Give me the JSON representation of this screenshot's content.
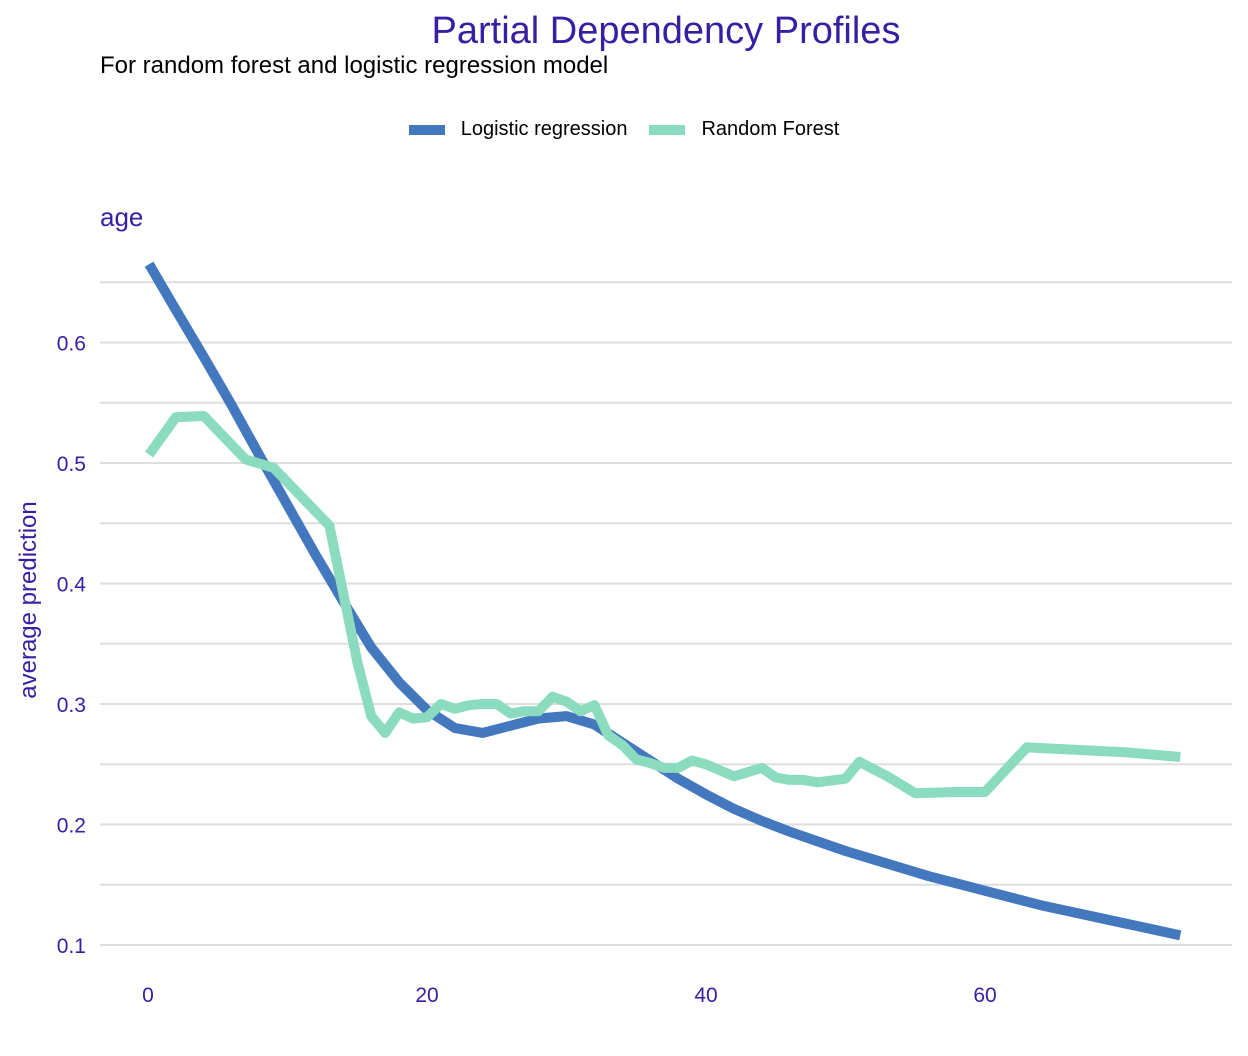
{
  "title": "Partial Dependency Profiles",
  "subtitle": "For random forest and logistic regression model",
  "chart_data": {
    "type": "line",
    "title": "Partial Dependency Profiles",
    "subtitle": "For random forest and logistic regression model",
    "panel": "age",
    "xlabel": "",
    "ylabel": "average prediction",
    "xlim": [
      -4,
      78
    ],
    "ylim": [
      0.1,
      0.66
    ],
    "xticks": [
      0,
      20,
      40,
      60
    ],
    "yticks": [
      0.1,
      0.2,
      0.3,
      0.4,
      0.5,
      0.6
    ],
    "grid": "horizontal",
    "legend_position": "top",
    "series": [
      {
        "name": "Logistic regression",
        "color": "#4378bf",
        "x": [
          0.08,
          2,
          4,
          6,
          8,
          10,
          12,
          14,
          16,
          18,
          20,
          22,
          24,
          26,
          28,
          30,
          32,
          34,
          36,
          38,
          40,
          42,
          44,
          46,
          48,
          50,
          52,
          54,
          56,
          58,
          60,
          62,
          64,
          66,
          68,
          70,
          72,
          74
        ],
        "y": [
          0.665,
          0.627,
          0.588,
          0.548,
          0.506,
          0.465,
          0.424,
          0.385,
          0.347,
          0.318,
          0.295,
          0.28,
          0.276,
          0.282,
          0.288,
          0.29,
          0.283,
          0.268,
          0.253,
          0.238,
          0.225,
          0.213,
          0.203,
          0.194,
          0.186,
          0.178,
          0.171,
          0.164,
          0.157,
          0.151,
          0.145,
          0.139,
          0.133,
          0.128,
          0.123,
          0.118,
          0.113,
          0.108
        ]
      },
      {
        "name": "Random Forest",
        "color": "#8bdcbe",
        "x": [
          0.08,
          2,
          4,
          7,
          9,
          11,
          13,
          15,
          16,
          17,
          18,
          19,
          20,
          21,
          22,
          23,
          24,
          25,
          26,
          27,
          28,
          29,
          30,
          31,
          32,
          33,
          34,
          35,
          36,
          37,
          38,
          39,
          40,
          42,
          44,
          45,
          46,
          47,
          48,
          50,
          51,
          53,
          55,
          58,
          60,
          63,
          70,
          74
        ],
        "y": [
          0.507,
          0.538,
          0.539,
          0.503,
          0.496,
          0.472,
          0.448,
          0.335,
          0.29,
          0.276,
          0.293,
          0.288,
          0.289,
          0.3,
          0.296,
          0.299,
          0.3,
          0.3,
          0.292,
          0.294,
          0.294,
          0.306,
          0.302,
          0.294,
          0.299,
          0.274,
          0.266,
          0.254,
          0.251,
          0.247,
          0.247,
          0.253,
          0.25,
          0.24,
          0.247,
          0.239,
          0.237,
          0.237,
          0.235,
          0.238,
          0.252,
          0.24,
          0.226,
          0.227,
          0.227,
          0.264,
          0.26,
          0.256
        ]
      }
    ]
  }
}
